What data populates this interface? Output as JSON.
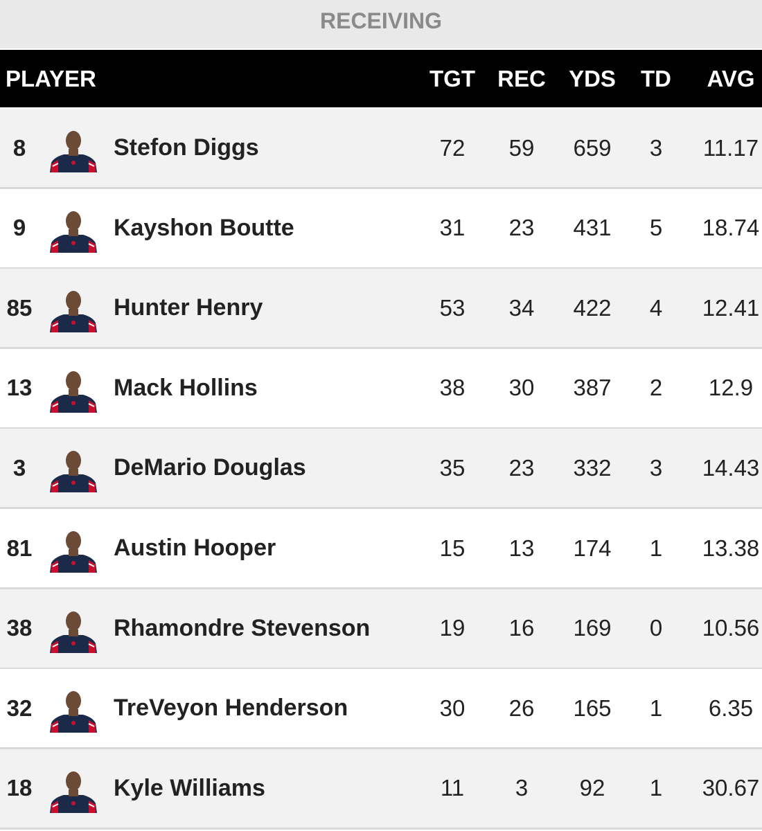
{
  "title": "RECEIVING",
  "columns": [
    "PLAYER",
    "TGT",
    "REC",
    "YDS",
    "TD",
    "AVG"
  ],
  "rows": [
    {
      "number": 8,
      "name": "Stefon Diggs",
      "tgt": 72,
      "rec": 59,
      "yds": 659,
      "td": 3,
      "avg": 11.17
    },
    {
      "number": 9,
      "name": "Kayshon Boutte",
      "tgt": 31,
      "rec": 23,
      "yds": 431,
      "td": 5,
      "avg": 18.74
    },
    {
      "number": 85,
      "name": "Hunter Henry",
      "tgt": 53,
      "rec": 34,
      "yds": 422,
      "td": 4,
      "avg": 12.41
    },
    {
      "number": 13,
      "name": "Mack Hollins",
      "tgt": 38,
      "rec": 30,
      "yds": 387,
      "td": 2,
      "avg": 12.9
    },
    {
      "number": 3,
      "name": "DeMario Douglas",
      "tgt": 35,
      "rec": 23,
      "yds": 332,
      "td": 3,
      "avg": 14.43
    },
    {
      "number": 81,
      "name": "Austin Hooper",
      "tgt": 15,
      "rec": 13,
      "yds": 174,
      "td": 1,
      "avg": 13.38
    },
    {
      "number": 38,
      "name": "Rhamondre Stevenson",
      "tgt": 19,
      "rec": 16,
      "yds": 169,
      "td": 0,
      "avg": 10.56
    },
    {
      "number": 32,
      "name": "TreVeyon Henderson",
      "tgt": 30,
      "rec": 26,
      "yds": 165,
      "td": 1,
      "avg": 6.35
    },
    {
      "number": 18,
      "name": "Kyle Williams",
      "tgt": 11,
      "rec": 3,
      "yds": 92,
      "td": 1,
      "avg": 30.67
    }
  ]
}
